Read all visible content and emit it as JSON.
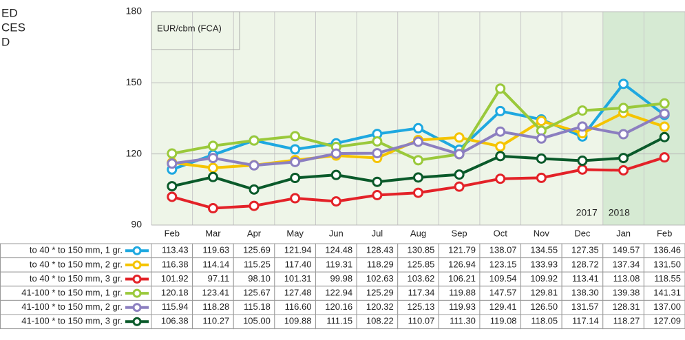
{
  "chart_data": {
    "type": "line",
    "title_lines": [
      "ED",
      "CES",
      "D"
    ],
    "unit_label": "EUR/cbm (FCA)",
    "annotations": [
      "2017",
      "2018"
    ],
    "categories": [
      "Feb",
      "Mar",
      "Apr",
      "May",
      "Jun",
      "Jul",
      "Aug",
      "Sep",
      "Oct",
      "Nov",
      "Dec",
      "Jan",
      "Feb"
    ],
    "ylim": [
      90,
      180
    ],
    "yticks": [
      90,
      120,
      150,
      180
    ],
    "grid": true,
    "series": [
      {
        "name": "to 40 * to 150 mm, 1 gr.",
        "color": "#1ea8e0",
        "values": [
          113.43,
          119.63,
          125.69,
          121.94,
          124.48,
          128.43,
          130.85,
          121.79,
          138.07,
          134.55,
          127.35,
          149.57,
          136.46
        ],
        "value_labels": [
          "113.43",
          "119.63",
          "125.69",
          "121.94",
          "124.48",
          "128.43",
          "130.85",
          "121.79",
          "138.07",
          "134.55",
          "127.35",
          "149.57",
          "136.46"
        ]
      },
      {
        "name": "to 40 * to 150 mm, 2 gr.",
        "color": "#f5c400",
        "values": [
          116.38,
          114.14,
          115.25,
          117.4,
          119.31,
          118.29,
          125.85,
          126.94,
          123.15,
          133.93,
          128.72,
          137.34,
          131.5
        ],
        "value_labels": [
          "116.38",
          "114.14",
          "115.25",
          "117.40",
          "119.31",
          "118.29",
          "125.85",
          "126.94",
          "123.15",
          "133.93",
          "128.72",
          "137.34",
          "131.50"
        ]
      },
      {
        "name": "to 40 * to 150 mm, 3 gr.",
        "color": "#e32228",
        "values": [
          101.92,
          97.11,
          98.1,
          101.31,
          99.98,
          102.63,
          103.62,
          106.21,
          109.54,
          109.92,
          113.41,
          113.08,
          118.55
        ],
        "value_labels": [
          "101.92",
          "97.11",
          "98.10",
          "101.31",
          "99.98",
          "102.63",
          "103.62",
          "106.21",
          "109.54",
          "109.92",
          "113.41",
          "113.08",
          "118.55"
        ]
      },
      {
        "name": "41-100 * to 150 mm, 1 gr.",
        "color": "#9ac93b",
        "values": [
          120.18,
          123.41,
          125.67,
          127.48,
          122.94,
          125.29,
          117.34,
          119.88,
          147.57,
          129.81,
          138.3,
          139.38,
          141.31
        ],
        "value_labels": [
          "120.18",
          "123.41",
          "125.67",
          "127.48",
          "122.94",
          "125.29",
          "117.34",
          "119.88",
          "147.57",
          "129.81",
          "138.30",
          "139.38",
          "141.31"
        ]
      },
      {
        "name": "41-100 * to 150 mm, 2 gr.",
        "color": "#8c7fc0",
        "values": [
          115.94,
          118.28,
          115.18,
          116.6,
          120.16,
          120.32,
          125.13,
          119.93,
          129.41,
          126.5,
          131.57,
          128.31,
          137.0
        ],
        "value_labels": [
          "115.94",
          "118.28",
          "115.18",
          "116.60",
          "120.16",
          "120.32",
          "125.13",
          "119.93",
          "129.41",
          "126.50",
          "131.57",
          "128.31",
          "137.00"
        ]
      },
      {
        "name": "41-100 * to 150 mm, 3 gr.",
        "color": "#0a5a2a",
        "values": [
          106.38,
          110.27,
          105.0,
          109.88,
          111.15,
          108.22,
          110.07,
          111.3,
          119.08,
          118.05,
          117.14,
          118.27,
          127.09
        ],
        "value_labels": [
          "106.38",
          "110.27",
          "105.00",
          "109.88",
          "111.15",
          "108.22",
          "110.07",
          "111.30",
          "119.08",
          "118.05",
          "117.14",
          "118.27",
          "127.09"
        ]
      }
    ]
  }
}
